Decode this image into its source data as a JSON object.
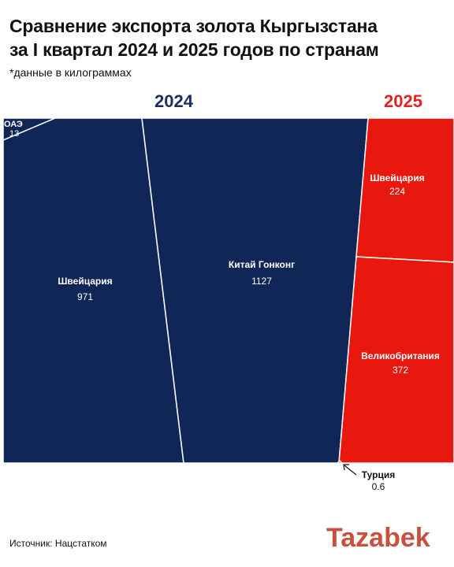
{
  "title_line1": "Сравнение экспорта золота Кыргызстана",
  "title_line2": "за I квартал 2024 и 2025 годов по странам",
  "subtitle": "*данные в килограммах",
  "source": "Источник: Нацстатком",
  "brand": "Tazabek",
  "colors": {
    "y2024": "#0f2657",
    "y2025": "#e8180e",
    "brand": "#c8513d"
  },
  "chart_data": {
    "type": "voronoi-treemap",
    "title": "Сравнение экспорта золота Кыргызстана за I квартал 2024 и 2025 годов по странам",
    "unit": "кг",
    "groups": [
      {
        "label": "2024",
        "items": [
          {
            "name": "ОАЭ",
            "value": 13
          },
          {
            "name": "Швейцария",
            "value": 971
          },
          {
            "name": "Китай Гонконг",
            "value": 1127
          }
        ]
      },
      {
        "label": "2025",
        "items": [
          {
            "name": "Швейцария",
            "value": 224
          },
          {
            "name": "Великобритания",
            "value": 372
          },
          {
            "name": "Турция",
            "value": 0.6
          }
        ]
      }
    ]
  }
}
